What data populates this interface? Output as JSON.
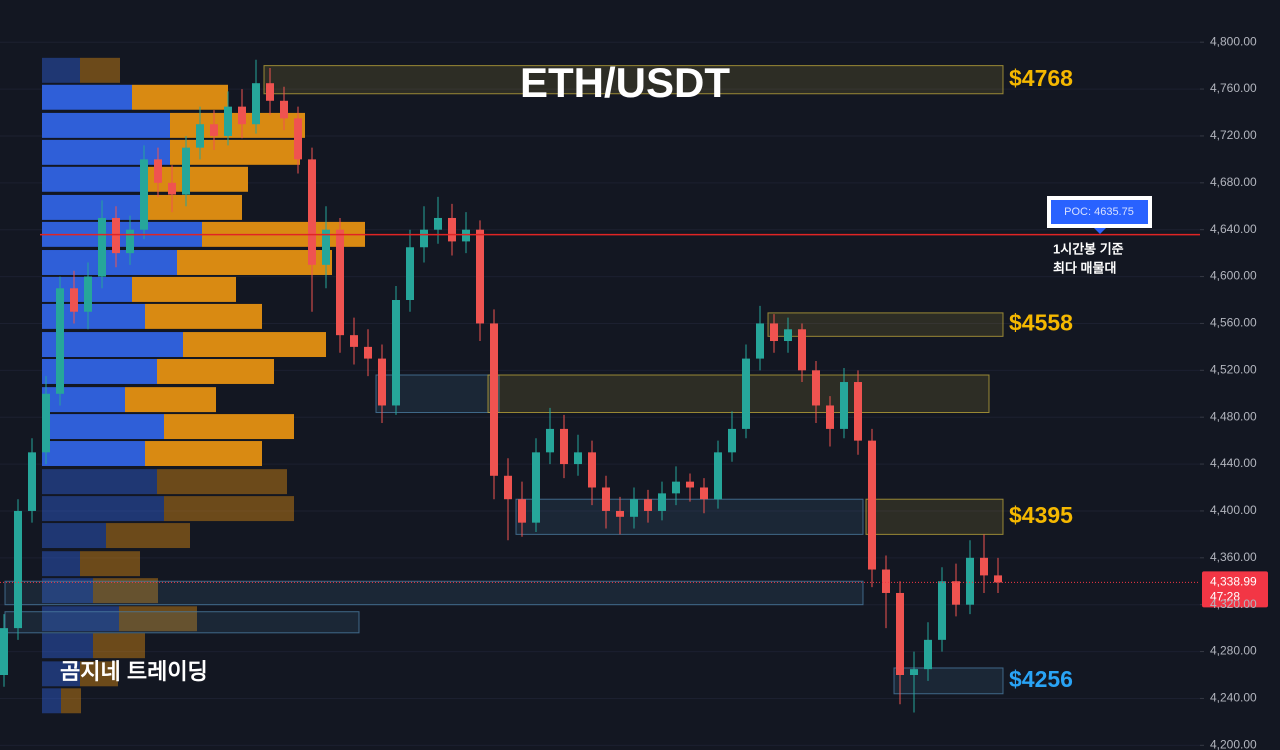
{
  "chart_data": {
    "type": "candlestick",
    "title": "ETH/USDT",
    "watermark": "곰지네 트레이딩",
    "up_color": "#26a69a",
    "down_color": "#ef5350",
    "grid": true,
    "ylim": [
      4196,
      4836
    ],
    "yticks": [
      {
        "value": 4200,
        "label": "4,200.00"
      },
      {
        "value": 4240,
        "label": "4,240.00"
      },
      {
        "value": 4280,
        "label": "4,280.00"
      },
      {
        "value": 4320,
        "label": "4,320.00"
      },
      {
        "value": 4360,
        "label": "4,360.00"
      },
      {
        "value": 4400,
        "label": "4,400.00"
      },
      {
        "value": 4440,
        "label": "4,440.00"
      },
      {
        "value": 4480,
        "label": "4,480.00"
      },
      {
        "value": 4520,
        "label": "4,520.00"
      },
      {
        "value": 4560,
        "label": "4,560.00"
      },
      {
        "value": 4600,
        "label": "4,600.00"
      },
      {
        "value": 4640,
        "label": "4,640.00"
      },
      {
        "value": 4680,
        "label": "4,680.00"
      },
      {
        "value": 4720,
        "label": "4,720.00"
      },
      {
        "value": 4760,
        "label": "4,760.00"
      },
      {
        "value": 4800,
        "label": "4,800.00"
      }
    ],
    "open": [
      4260,
      4300,
      4400,
      4450,
      4500,
      4590,
      4570,
      4600,
      4650,
      4620,
      4640,
      4700,
      4680,
      4670,
      4710,
      4730,
      4720,
      4745,
      4730,
      4765,
      4750,
      4735,
      4700,
      4610,
      4640,
      4550,
      4540,
      4530,
      4490,
      4580,
      4625,
      4640,
      4650,
      4630,
      4640,
      4560,
      4430,
      4410,
      4390,
      4450,
      4470,
      4440,
      4450,
      4420,
      4400,
      4395,
      4410,
      4400,
      4415,
      4425,
      4420,
      4410,
      4450,
      4470,
      4530,
      4560,
      4545,
      4555,
      4520,
      4490,
      4470,
      4510,
      4460,
      4350,
      4330,
      4260,
      4265,
      4290,
      4340,
      4320,
      4360,
      4345
    ],
    "high": [
      4312,
      4410,
      4462,
      4515,
      4600,
      4605,
      4612,
      4665,
      4660,
      4652,
      4712,
      4710,
      4695,
      4720,
      4745,
      4742,
      4758,
      4760,
      4785,
      4778,
      4762,
      4745,
      4710,
      4660,
      4650,
      4565,
      4555,
      4542,
      4592,
      4640,
      4660,
      4668,
      4662,
      4655,
      4648,
      4572,
      4445,
      4425,
      4462,
      4488,
      4482,
      4465,
      4460,
      4430,
      4412,
      4420,
      4418,
      4425,
      4438,
      4432,
      4428,
      4460,
      4485,
      4542,
      4575,
      4568,
      4565,
      4560,
      4528,
      4498,
      4522,
      4520,
      4470,
      4362,
      4340,
      4280,
      4305,
      4352,
      4355,
      4375,
      4380,
      4360
    ],
    "low": [
      4250,
      4290,
      4390,
      4440,
      4490,
      4560,
      4555,
      4590,
      4608,
      4610,
      4632,
      4668,
      4655,
      4660,
      4700,
      4708,
      4712,
      4718,
      4722,
      4738,
      4725,
      4688,
      4570,
      4590,
      4535,
      4525,
      4515,
      4475,
      4482,
      4570,
      4612,
      4628,
      4618,
      4620,
      4545,
      4410,
      4375,
      4378,
      4382,
      4440,
      4428,
      4430,
      4405,
      4385,
      4380,
      4385,
      4390,
      4392,
      4405,
      4408,
      4398,
      4402,
      4442,
      4462,
      4520,
      4535,
      4535,
      4510,
      4475,
      4455,
      4462,
      4448,
      4335,
      4300,
      4235,
      4228,
      4255,
      4280,
      4310,
      4312,
      4330,
      4330
    ],
    "close": [
      4300,
      4400,
      4450,
      4500,
      4590,
      4570,
      4600,
      4650,
      4620,
      4640,
      4700,
      4680,
      4670,
      4710,
      4730,
      4720,
      4745,
      4730,
      4765,
      4750,
      4735,
      4700,
      4610,
      4640,
      4550,
      4540,
      4530,
      4490,
      4580,
      4625,
      4640,
      4650,
      4630,
      4640,
      4560,
      4430,
      4410,
      4390,
      4450,
      4470,
      4440,
      4450,
      4420,
      4400,
      4395,
      4410,
      4400,
      4415,
      4425,
      4420,
      4410,
      4450,
      4470,
      4530,
      4560,
      4545,
      4555,
      4520,
      4490,
      4470,
      4510,
      4460,
      4350,
      4330,
      4260,
      4265,
      4290,
      4340,
      4320,
      4360,
      4345,
      4338.99
    ],
    "profile": {
      "buy_color": "#2f5fd8",
      "sell_color": "#d98a12",
      "value_area": [
        4437,
        4765
      ],
      "levels": [
        4776,
        4753,
        4729,
        4706,
        4683,
        4659,
        4636,
        4612,
        4589,
        4566,
        4542,
        4519,
        4495,
        4472,
        4449,
        4425,
        4402,
        4379,
        4355,
        4332,
        4308,
        4285,
        4261,
        4238
      ],
      "buy": [
        38,
        90,
        128,
        128,
        103,
        103,
        160,
        135,
        90,
        103,
        141,
        115,
        83,
        122,
        103,
        115,
        122,
        64,
        38,
        51,
        77,
        51,
        38,
        19
      ],
      "sell": [
        40,
        96,
        135,
        130,
        103,
        97,
        163,
        155,
        104,
        117,
        143,
        117,
        91,
        130,
        117,
        130,
        130,
        84,
        60,
        65,
        78,
        52,
        38,
        20
      ]
    },
    "zones": [
      {
        "top": 4780,
        "bottom": 4756,
        "from": 19,
        "to": 71,
        "color": "#b8a33a",
        "label": "$4768",
        "label_color": "#f5b800"
      },
      {
        "top": 4569,
        "bottom": 4549,
        "from": 55,
        "to": 71,
        "color": "#b8a33a",
        "label": "$4558",
        "label_color": "#f5b800"
      },
      {
        "top": 4516,
        "bottom": 4484,
        "from": 27,
        "to": 35,
        "color": "#4a7aa0"
      },
      {
        "top": 4516,
        "bottom": 4484,
        "from": 35,
        "to": 70,
        "color": "#b8a33a"
      },
      {
        "top": 4410,
        "bottom": 4380,
        "from": 37,
        "to": 61,
        "color": "#4a7aa0"
      },
      {
        "top": 4410,
        "bottom": 4380,
        "from": 62,
        "to": 71,
        "color": "#b8a33a",
        "label": "$4395",
        "label_color": "#f5b800"
      },
      {
        "top": 4340,
        "bottom": 4320,
        "from": 0,
        "to": 61,
        "color": "#4a7aa0"
      },
      {
        "top": 4314,
        "bottom": 4296,
        "from": 0,
        "to": 25,
        "color": "#4a7aa0"
      },
      {
        "top": 4266,
        "bottom": 4244,
        "from": 64,
        "to": 71,
        "color": "#4a7aa0",
        "label": "$4256",
        "label_color": "#29a3f5"
      }
    ],
    "poc": {
      "value": 4635.75,
      "label": "POC: 4635.75",
      "color": "#e02424",
      "note": [
        "1시간봉 기준",
        "최다 매물대"
      ]
    },
    "last_price": {
      "value": 4338.99,
      "label": "4,338.99",
      "countdown": "47:28",
      "color": "#f23645"
    }
  }
}
